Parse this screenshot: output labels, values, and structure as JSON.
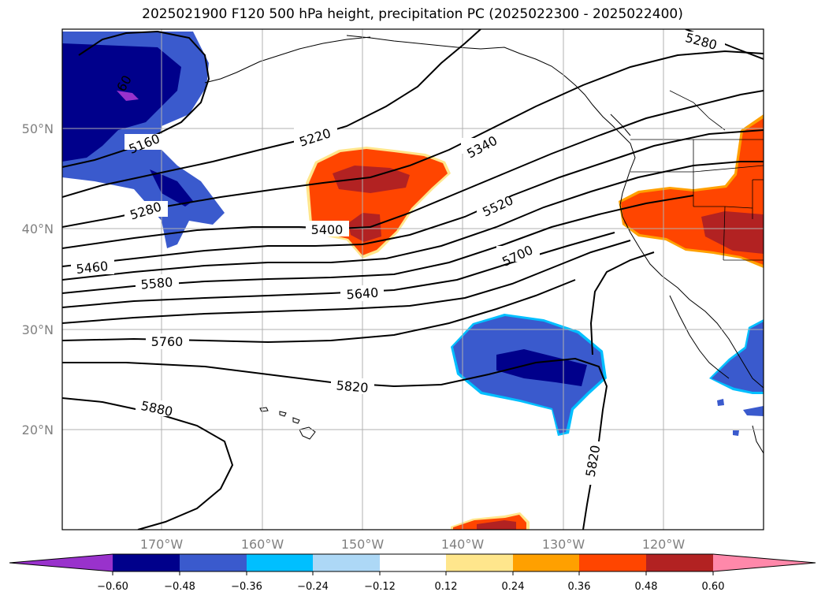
{
  "title": "2025021900 F120 500 hPa height, precipitation PC (2025022300 - 2025022400)",
  "map": {
    "lat_labels": [
      "50°N",
      "40°N",
      "30°N",
      "20°N"
    ],
    "lon_labels": [
      "170°W",
      "160°W",
      "150°W",
      "140°W",
      "130°W",
      "120°W"
    ],
    "contour_labels": [
      "5280",
      "5160",
      "5220",
      "5340",
      "5280",
      "5400",
      "5520",
      "5460",
      "5580",
      "5640",
      "5700",
      "5760",
      "5820",
      "5880",
      "5820",
      "60"
    ],
    "contour_line_color": "#000000",
    "gridlines": true
  },
  "colorbar": {
    "ticks": [
      "−0.60",
      "−0.48",
      "−0.36",
      "−0.24",
      "−0.12",
      "0.12",
      "0.24",
      "0.36",
      "0.48",
      "0.60"
    ],
    "colors": [
      "#9932cc",
      "#00008b",
      "#3a5acd",
      "#00bfff",
      "#add8f6",
      "#ffffff",
      "#ffe68c",
      "#ffa000",
      "#ff4500",
      "#b22222",
      "#ff88aa"
    ]
  }
}
